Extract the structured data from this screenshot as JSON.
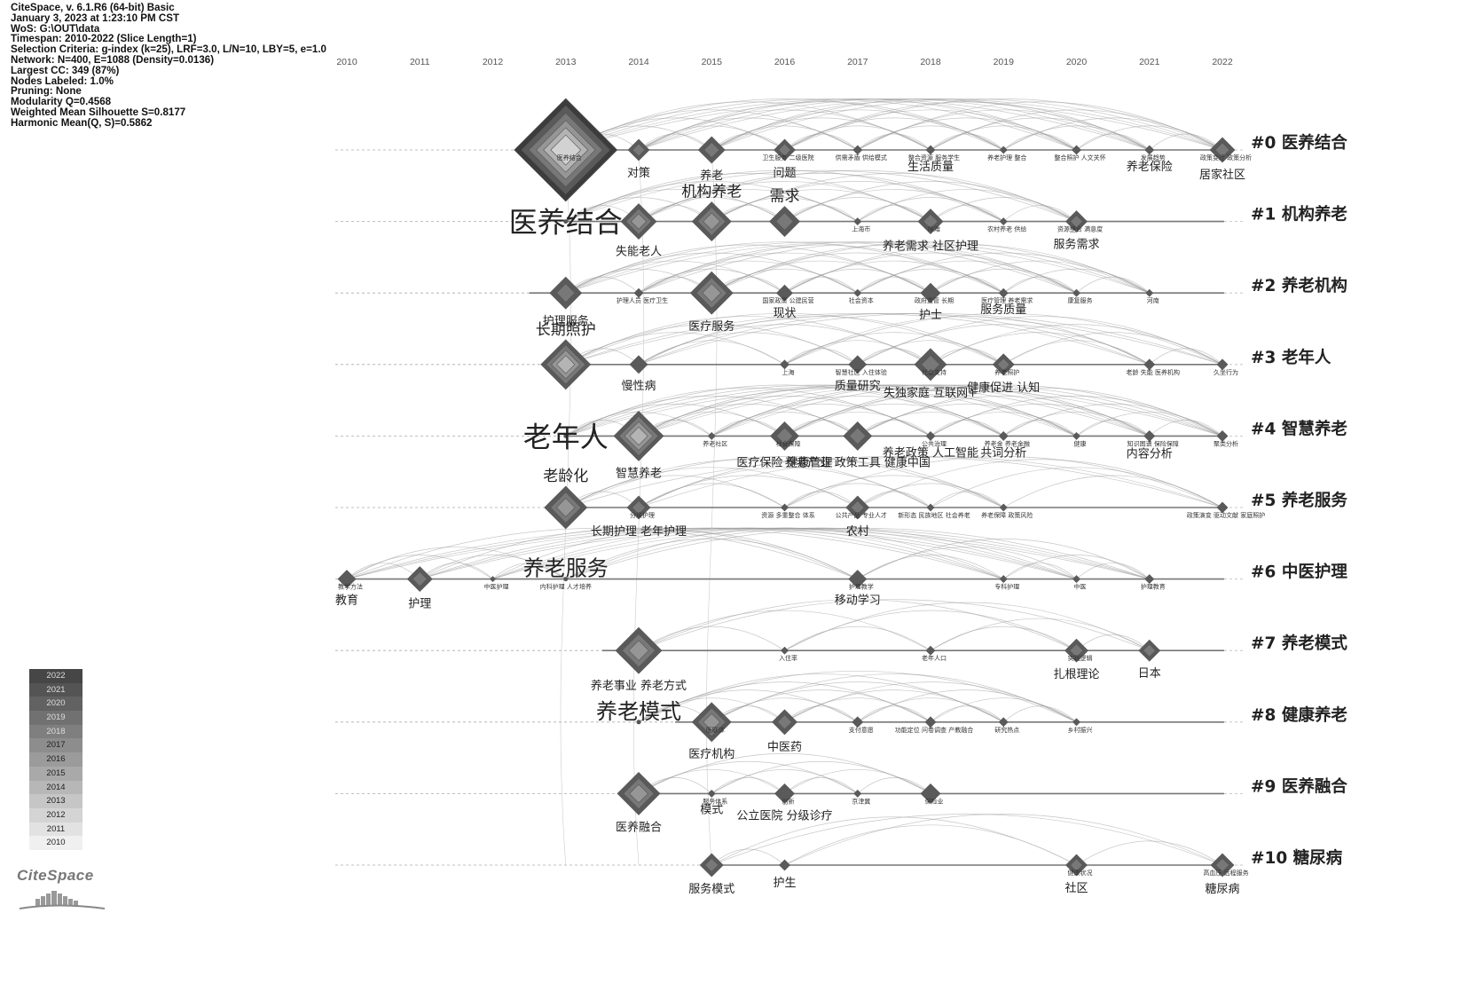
{
  "info": [
    "CiteSpace, v. 6.1.R6 (64-bit) Basic",
    "January 3, 2023 at 1:23:10 PM CST",
    "WoS: G:\\OUT\\data",
    "Timespan: 2010-2022 (Slice Length=1)",
    "Selection Criteria: g-index (k=25), LRF=3.0, L/N=10, LBY=5, e=1.0",
    "Network: N=400, E=1088 (Density=0.0136)",
    "Largest CC: 349 (87%)",
    "Nodes Labeled: 1.0%",
    "Pruning: None",
    "Modularity Q=0.4568",
    "Weighted Mean Silhouette S=0.8177",
    "Harmonic Mean(Q, S)=0.5862"
  ],
  "years": [
    "2010",
    "2011",
    "2012",
    "2013",
    "2014",
    "2015",
    "2016",
    "2017",
    "2018",
    "2019",
    "2020",
    "2021",
    "2022"
  ],
  "clusters": [
    "#0 医养结合",
    "#1 机构养老",
    "#2 养老机构",
    "#3 老年人",
    "#4 智慧养老",
    "#5 养老服务",
    "#6 中医护理",
    "#7 养老模式",
    "#8 健康养老",
    "#9 医养融合",
    "#10 糖尿病"
  ],
  "legend_years": [
    "2022",
    "2021",
    "2020",
    "2019",
    "2018",
    "2017",
    "2016",
    "2015",
    "2014",
    "2013",
    "2012",
    "2011",
    "2010"
  ],
  "logo": "CiteSpace",
  "nodes": [
    {
      "c": 0,
      "y": 2013,
      "s": 58,
      "label": "",
      "small": "医养结合"
    },
    {
      "c": 0,
      "y": 2014,
      "s": 12,
      "label": "对策"
    },
    {
      "c": 0,
      "y": 2015,
      "s": 15,
      "label": "养老"
    },
    {
      "c": 0,
      "y": 2016,
      "s": 12,
      "label": "问题",
      "small": "卫生服务 二级医院"
    },
    {
      "c": 0,
      "y": 2017,
      "s": 5,
      "small": "供需矛盾 供给模式"
    },
    {
      "c": 0,
      "y": 2018,
      "s": 5,
      "label": "生活质量",
      "small": "整合资源 服务学生"
    },
    {
      "c": 0,
      "y": 2019,
      "s": 4,
      "small": "养老护理 整合"
    },
    {
      "c": 0,
      "y": 2020,
      "s": 5,
      "small": "整合照护 人文关怀"
    },
    {
      "c": 0,
      "y": 2021,
      "s": 5,
      "label": "养老保险",
      "small": "发展趋势"
    },
    {
      "c": 0,
      "y": 2022,
      "s": 14,
      "label": "居家社区",
      "small": "政策变迁 政策分析"
    },
    {
      "c": 1,
      "y": 2013,
      "s": 0,
      "big": "医养结合"
    },
    {
      "c": 1,
      "y": 2014,
      "s": 20,
      "label": "失能老人"
    },
    {
      "c": 1,
      "y": 2015,
      "s": 22,
      "mid": "机构养老"
    },
    {
      "c": 1,
      "y": 2016,
      "s": 17,
      "mid": "需求"
    },
    {
      "c": 1,
      "y": 2017,
      "s": 4,
      "small": "上海市"
    },
    {
      "c": 1,
      "y": 2018,
      "s": 14,
      "label": "养老需求 社区护理",
      "small": "除难"
    },
    {
      "c": 1,
      "y": 2019,
      "s": 4,
      "small": "农村养老 供给"
    },
    {
      "c": 1,
      "y": 2020,
      "s": 12,
      "label": "服务需求",
      "small": "资源整合 满意度"
    },
    {
      "c": 2,
      "y": 2013,
      "s": 18,
      "label": "护理服务"
    },
    {
      "c": 2,
      "y": 2014,
      "s": 5,
      "small": "护理人员 医疗卫生"
    },
    {
      "c": 2,
      "y": 2015,
      "s": 24,
      "label": "医疗服务"
    },
    {
      "c": 2,
      "y": 2016,
      "s": 9,
      "label": "现状",
      "small": "国家政策 公建民营"
    },
    {
      "c": 2,
      "y": 2017,
      "s": 4,
      "small": "社会资本"
    },
    {
      "c": 2,
      "y": 2018,
      "s": 11,
      "label": "护士",
      "small": "政府监管 长期"
    },
    {
      "c": 2,
      "y": 2019,
      "s": 5,
      "label": "服务质量",
      "small": "医疗管理 养老需求"
    },
    {
      "c": 2,
      "y": 2020,
      "s": 4,
      "small": "康复服务"
    },
    {
      "c": 2,
      "y": 2021,
      "s": 4,
      "small": "河南"
    },
    {
      "c": 3,
      "y": 2013,
      "s": 28,
      "mid": "长期照护"
    },
    {
      "c": 3,
      "y": 2014,
      "s": 10,
      "label": "慢性病"
    },
    {
      "c": 3,
      "y": 2016,
      "s": 5,
      "small": "上海"
    },
    {
      "c": 3,
      "y": 2017,
      "s": 10,
      "label": "质量研究",
      "small": "智慧社区 入住体验"
    },
    {
      "c": 3,
      "y": 2018,
      "s": 18,
      "label": "失独家庭 互联网+",
      "small": "社会支持"
    },
    {
      "c": 3,
      "y": 2019,
      "s": 12,
      "label": "健康促进 认知",
      "small": "养老照护"
    },
    {
      "c": 3,
      "y": 2021,
      "s": 6,
      "small": "老龄 失能 医养机构"
    },
    {
      "c": 3,
      "y": 2022,
      "s": 6,
      "small": "久坐行为"
    },
    {
      "c": 4,
      "y": 2013,
      "s": 0,
      "big": "老年人"
    },
    {
      "c": 4,
      "y": 2014,
      "s": 28,
      "label": "智慧养老"
    },
    {
      "c": 4,
      "y": 2015,
      "s": 4,
      "small": "养老社区"
    },
    {
      "c": 4,
      "y": 2016,
      "s": 16,
      "label": "医疗保险 健康管理",
      "small": "社会保障"
    },
    {
      "c": 4,
      "y": 2017,
      "s": 16,
      "label": "养老产业 政策工具 健康中国"
    },
    {
      "c": 4,
      "y": 2018,
      "s": 5,
      "label": "养老政策 人工智能",
      "small": "公共治理"
    },
    {
      "c": 4,
      "y": 2019,
      "s": 5,
      "label": "共词分析",
      "small": "养老金 养老金融"
    },
    {
      "c": 4,
      "y": 2020,
      "s": 4,
      "small": "健康"
    },
    {
      "c": 4,
      "y": 2021,
      "s": 6,
      "label": "内容分析",
      "small": "知识图谱 保险保障"
    },
    {
      "c": 4,
      "y": 2022,
      "s": 6,
      "small": "聚类分析"
    },
    {
      "c": 5,
      "y": 2013,
      "s": 24,
      "mid": "老龄化"
    },
    {
      "c": 5,
      "y": 2014,
      "s": 13,
      "label": "长期护理 老年护理",
      "small": "分级护理"
    },
    {
      "c": 5,
      "y": 2016,
      "s": 4,
      "small": "资源 多重整合 体系"
    },
    {
      "c": 5,
      "y": 2017,
      "s": 13,
      "label": "农村",
      "small": "公共产品 专业人才"
    },
    {
      "c": 5,
      "y": 2018,
      "s": 4,
      "small": "新形态 民族地区 社会养老"
    },
    {
      "c": 5,
      "y": 2019,
      "s": 4,
      "small": "养老保障 政策风险"
    },
    {
      "c": 5,
      "y": 2022,
      "s": 6,
      "small": "政策演变 驱动文献 家庭照护"
    },
    {
      "c": 6,
      "y": 2010,
      "s": 10,
      "label": "教育",
      "small": "教学方法"
    },
    {
      "c": 6,
      "y": 2011,
      "s": 14,
      "label": "护理"
    },
    {
      "c": 6,
      "y": 2012,
      "s": 3,
      "small": "中医护理"
    },
    {
      "c": 6,
      "y": 2013,
      "s": 0,
      "mid": "养老服务",
      "small": "内科护理 人才培养"
    },
    {
      "c": 6,
      "y": 2017,
      "s": 10,
      "label": "移动学习",
      "small": "护理教学"
    },
    {
      "c": 6,
      "y": 2019,
      "s": 4,
      "small": "专科护理"
    },
    {
      "c": 6,
      "y": 2020,
      "s": 4,
      "small": "中医"
    },
    {
      "c": 6,
      "y": 2021,
      "s": 5,
      "small": "护理教育"
    },
    {
      "c": 7,
      "y": 2014,
      "s": 26,
      "label": "养老事业 养老方式"
    },
    {
      "c": 7,
      "y": 2016,
      "s": 4,
      "small": "入住率"
    },
    {
      "c": 7,
      "y": 2018,
      "s": 5,
      "small": "老年人口"
    },
    {
      "c": 7,
      "y": 2020,
      "s": 13,
      "label": "扎根理论",
      "small": "实践逻辑"
    },
    {
      "c": 7,
      "y": 2021,
      "s": 12,
      "label": "日本"
    },
    {
      "c": 8,
      "y": 2014,
      "s": 0,
      "mid": "养老模式"
    },
    {
      "c": 8,
      "y": 2015,
      "s": 22,
      "label": "医疗机构",
      "small": "医联体"
    },
    {
      "c": 8,
      "y": 2016,
      "s": 14,
      "label": "中医药"
    },
    {
      "c": 8,
      "y": 2017,
      "s": 6,
      "small": "支付意愿"
    },
    {
      "c": 8,
      "y": 2018,
      "s": 6,
      "small": "功能定位 问卷调查 产教融合"
    },
    {
      "c": 8,
      "y": 2019,
      "s": 5,
      "small": "研究热点"
    },
    {
      "c": 8,
      "y": 2020,
      "s": 4,
      "small": "乡村振兴"
    },
    {
      "c": 9,
      "y": 2014,
      "s": 24,
      "label": "医养融合"
    },
    {
      "c": 9,
      "y": 2015,
      "s": 4,
      "label": "模式",
      "small": "服务体系"
    },
    {
      "c": 9,
      "y": 2016,
      "s": 11,
      "label": "公立医院 分级诊疗",
      "small": "创新"
    },
    {
      "c": 9,
      "y": 2017,
      "s": 4,
      "small": "京津冀"
    },
    {
      "c": 9,
      "y": 2018,
      "s": 11,
      "small": "保险业"
    },
    {
      "c": 10,
      "y": 2015,
      "s": 13,
      "label": "服务模式"
    },
    {
      "c": 10,
      "y": 2016,
      "s": 6,
      "label": "护生"
    },
    {
      "c": 10,
      "y": 2020,
      "s": 12,
      "label": "社区",
      "small": "健康状况"
    },
    {
      "c": 10,
      "y": 2022,
      "s": 13,
      "label": "糖尿病",
      "small": "高血压 远程服务"
    }
  ]
}
